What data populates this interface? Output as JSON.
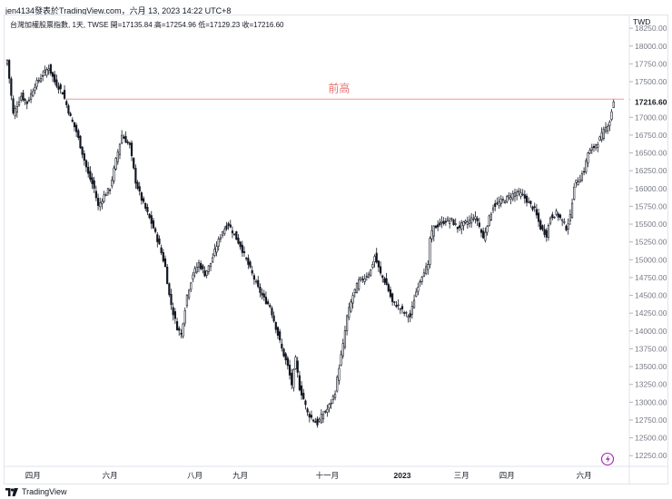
{
  "header": {
    "caption": "jen4134發表於TradingView.com，六月 13, 2023 14:22 UTC+8"
  },
  "footer": {
    "brand": "TradingView",
    "logo_icon": "tradingview-logo-icon"
  },
  "colors": {
    "candle": "#131722",
    "resistance_line": "#ef9a9a",
    "annotation": "#e57373",
    "grid": "#e0e3eb",
    "badge": "#9c27b0"
  },
  "chart_data": {
    "type": "candlestick",
    "legend": "台灣加權股票指數, 1天, TWSE  開=17135.84  高=17254.96  低=17129.23  收=17216.60",
    "currency": "TWD",
    "ylim": [
      12100,
      18430
    ],
    "yticks": [
      12250,
      12500,
      12750,
      13000,
      13250,
      13500,
      13750,
      14000,
      14250,
      14500,
      14750,
      15000,
      15250,
      15500,
      15750,
      16000,
      16250,
      16500,
      16750,
      17000,
      17250,
      17500,
      17750,
      18000,
      18250
    ],
    "ytick_labels": [
      "12250.00",
      "12500.00",
      "12750.00",
      "13000.00",
      "13250.00",
      "13500.00",
      "13750.00",
      "14000.00",
      "14250.00",
      "14500.00",
      "14750.00",
      "15000.00",
      "15250.00",
      "15500.00",
      "15750.00",
      "16000.00",
      "16250.00",
      "16500.00",
      "16750.00",
      "17000.00",
      "17250.00",
      "17500.00",
      "17750.00",
      "18000.00",
      "18250.00"
    ],
    "current_price": "17216.60",
    "resistance": {
      "value": 17255,
      "label": "前高"
    },
    "xlabels": [
      "四月",
      "六月",
      "八月",
      "九月",
      "十一月",
      "2023",
      "三月",
      "四月",
      "六月"
    ],
    "xlabel_index": [
      13,
      52,
      95,
      118,
      162,
      200,
      230,
      253,
      292
    ],
    "xlabel_bold": [
      false,
      false,
      false,
      false,
      false,
      true,
      false,
      false,
      false
    ],
    "path": [
      [
        0,
        17800
      ],
      [
        3,
        17050
      ],
      [
        7,
        17300
      ],
      [
        10,
        17200
      ],
      [
        14,
        17450
      ],
      [
        18,
        17600
      ],
      [
        21,
        17700
      ],
      [
        24,
        17500
      ],
      [
        28,
        17350
      ],
      [
        32,
        17000
      ],
      [
        35,
        16800
      ],
      [
        38,
        16500
      ],
      [
        41,
        16200
      ],
      [
        44,
        16000
      ],
      [
        46,
        15750
      ],
      [
        49,
        15900
      ],
      [
        52,
        16000
      ],
      [
        55,
        16400
      ],
      [
        58,
        16750
      ],
      [
        62,
        16600
      ],
      [
        65,
        16100
      ],
      [
        68,
        15850
      ],
      [
        71,
        15650
      ],
      [
        74,
        15450
      ],
      [
        77,
        15200
      ],
      [
        80,
        14900
      ],
      [
        82,
        14500
      ],
      [
        84,
        14250
      ],
      [
        86,
        14050
      ],
      [
        88,
        13950
      ],
      [
        91,
        14500
      ],
      [
        94,
        14800
      ],
      [
        97,
        14950
      ],
      [
        100,
        14800
      ],
      [
        103,
        14950
      ],
      [
        106,
        15200
      ],
      [
        109,
        15400
      ],
      [
        112,
        15500
      ],
      [
        115,
        15350
      ],
      [
        118,
        15200
      ],
      [
        121,
        15000
      ],
      [
        124,
        14800
      ],
      [
        127,
        14600
      ],
      [
        130,
        14450
      ],
      [
        133,
        14350
      ],
      [
        136,
        14050
      ],
      [
        139,
        13750
      ],
      [
        142,
        13500
      ],
      [
        144,
        13250
      ],
      [
        146,
        13600
      ],
      [
        148,
        13200
      ],
      [
        150,
        13050
      ],
      [
        152,
        12850
      ],
      [
        155,
        12750
      ],
      [
        157,
        12700
      ],
      [
        159,
        12800
      ],
      [
        162,
        12900
      ],
      [
        164,
        13000
      ],
      [
        166,
        13150
      ],
      [
        168,
        13500
      ],
      [
        170,
        13800
      ],
      [
        172,
        14200
      ],
      [
        175,
        14500
      ],
      [
        178,
        14700
      ],
      [
        181,
        14750
      ],
      [
        184,
        14850
      ],
      [
        186,
        15050
      ],
      [
        189,
        14800
      ],
      [
        192,
        14650
      ],
      [
        195,
        14400
      ],
      [
        198,
        14350
      ],
      [
        201,
        14250
      ],
      [
        204,
        14200
      ],
      [
        206,
        14450
      ],
      [
        208,
        14650
      ],
      [
        211,
        14850
      ],
      [
        213,
        14900
      ],
      [
        214,
        15300
      ],
      [
        216,
        15450
      ],
      [
        219,
        15500
      ],
      [
        222,
        15550
      ],
      [
        225,
        15550
      ],
      [
        228,
        15450
      ],
      [
        231,
        15500
      ],
      [
        234,
        15550
      ],
      [
        236,
        15600
      ],
      [
        238,
        15550
      ],
      [
        241,
        15300
      ],
      [
        243,
        15500
      ],
      [
        246,
        15750
      ],
      [
        249,
        15800
      ],
      [
        252,
        15850
      ],
      [
        255,
        15900
      ],
      [
        258,
        15950
      ],
      [
        261,
        15900
      ],
      [
        264,
        15800
      ],
      [
        267,
        15700
      ],
      [
        270,
        15450
      ],
      [
        273,
        15350
      ],
      [
        275,
        15600
      ],
      [
        278,
        15650
      ],
      [
        281,
        15550
      ],
      [
        283,
        15450
      ],
      [
        285,
        15600
      ],
      [
        287,
        16050
      ],
      [
        290,
        16150
      ],
      [
        292,
        16250
      ],
      [
        294,
        16500
      ],
      [
        296,
        16550
      ],
      [
        299,
        16650
      ],
      [
        302,
        16800
      ],
      [
        305,
        16950
      ],
      [
        307,
        17216
      ]
    ]
  }
}
